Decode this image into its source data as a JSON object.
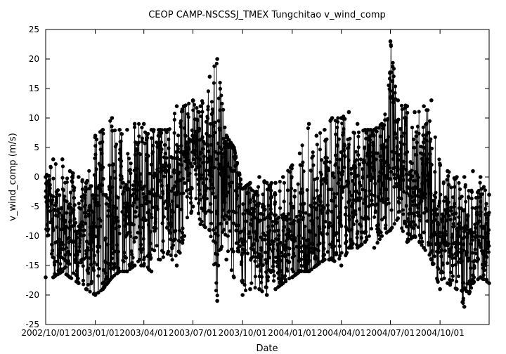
{
  "chart_data": {
    "type": "line",
    "title": "CEOP CAMP-NSCSSJ_TMEX Tungchitao  v_wind_comp",
    "xlabel": "Date",
    "ylabel": "v_wind_comp (m/s)",
    "ylim": [
      -25,
      25
    ],
    "xlim": [
      "2002-10-01",
      "2004-12-31"
    ],
    "yticks": [
      -25,
      -20,
      -15,
      -10,
      -5,
      0,
      5,
      10,
      15,
      20,
      25
    ],
    "xticks": [
      {
        "date": "2002-10-01",
        "label": "2002/10/01"
      },
      {
        "date": "2003-01-01",
        "label": "2003/01/01"
      },
      {
        "date": "2003-04-01",
        "label": "2003/04/01"
      },
      {
        "date": "2003-07-01",
        "label": "2003/07/01"
      },
      {
        "date": "2003-10-01",
        "label": "2003/10/01"
      },
      {
        "date": "2004-01-01",
        "label": "2004/01/01"
      },
      {
        "date": "2004-04-01",
        "label": "2004/04/01"
      },
      {
        "date": "2004-07-01",
        "label": "2004/07/01"
      },
      {
        "date": "2004-10-01",
        "label": "2004/10/01"
      }
    ],
    "grid": false,
    "legend": "none",
    "marker": "filled-circle",
    "color": "#000000",
    "series": [
      {
        "x": [
          "2002-10-01",
          "2002-10-15",
          "2002-11-01",
          "2002-11-15",
          "2002-12-01",
          "2002-12-15",
          "2003-01-01",
          "2003-01-15",
          "2003-02-01",
          "2003-02-15",
          "2003-03-01",
          "2003-03-15",
          "2003-04-01",
          "2003-04-15",
          "2003-05-01",
          "2003-05-15",
          "2003-06-01",
          "2003-06-15",
          "2003-07-01",
          "2003-07-15",
          "2003-08-01",
          "2003-08-15",
          "2003-09-01",
          "2003-09-15",
          "2003-10-01",
          "2003-10-15",
          "2003-11-01",
          "2003-11-15",
          "2003-12-01",
          "2003-12-15",
          "2004-01-01",
          "2004-01-15",
          "2004-02-01",
          "2004-02-15",
          "2004-03-01",
          "2004-03-15",
          "2004-04-01",
          "2004-04-15",
          "2004-05-01",
          "2004-05-15",
          "2004-06-01",
          "2004-06-15",
          "2004-07-01",
          "2004-07-15",
          "2004-08-01",
          "2004-08-15",
          "2004-09-01",
          "2004-09-15",
          "2004-10-01",
          "2004-10-15",
          "2004-11-01",
          "2004-11-15",
          "2004-12-01",
          "2004-12-15",
          "2004-12-31"
        ],
        "y_mean": [
          -6,
          -8,
          -9,
          -10,
          -9,
          -10,
          -10,
          -9,
          -8,
          -7,
          -6,
          -5,
          -4,
          -3,
          -3,
          -2,
          -2,
          3,
          5,
          4,
          3,
          2,
          1,
          -2,
          -8,
          -10,
          -11,
          -12,
          -11,
          -10,
          -10,
          -9,
          -8,
          -7,
          -6,
          -5,
          -4,
          -2,
          -1,
          0,
          1,
          1,
          2,
          3,
          0,
          -2,
          -2,
          -3,
          -8,
          -10,
          -11,
          -10,
          -11,
          -10,
          -11
        ],
        "y_min": [
          -17,
          -17,
          -16,
          -17,
          -18,
          -19,
          -20,
          -19,
          -17,
          -16,
          -16,
          -15,
          -15,
          -16,
          -14,
          -13,
          -15,
          -10,
          -5,
          -8,
          -9,
          -21,
          -14,
          -17,
          -20,
          -19,
          -19,
          -20,
          -19,
          -18,
          -17,
          -16,
          -16,
          -15,
          -14,
          -14,
          -15,
          -12,
          -12,
          -11,
          -12,
          -10,
          -9,
          -7,
          -11,
          -10,
          -12,
          -14,
          -19,
          -18,
          -19,
          -22,
          -18,
          -17,
          -18
        ],
        "y_max": [
          0,
          3,
          3,
          1,
          0,
          -1,
          7,
          8,
          10,
          8,
          8,
          9,
          9,
          8,
          8,
          8,
          12,
          12,
          13,
          12,
          17,
          20,
          7,
          5,
          -2,
          -1,
          0,
          -1,
          -1,
          0,
          2,
          4,
          9,
          7,
          8,
          10,
          10,
          11,
          9,
          8,
          8,
          9,
          23,
          13,
          12,
          11,
          12,
          13,
          2,
          1,
          0,
          0,
          1,
          0,
          -3
        ]
      }
    ]
  }
}
